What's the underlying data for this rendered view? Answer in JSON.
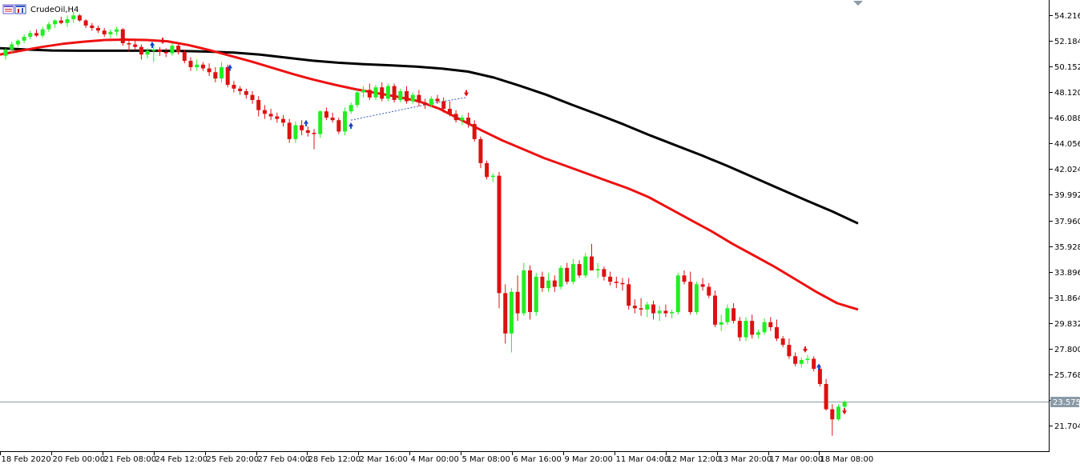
{
  "window": {
    "title": "CrudeOil,H4"
  },
  "chart_data": {
    "type": "candlestick",
    "symbol": "CrudeOil",
    "timeframe": "H4",
    "ylim": [
      20.45,
      55.2
    ],
    "y_ticks": [
      "54.216",
      "52.184",
      "50.152",
      "48.120",
      "46.088",
      "44.056",
      "42.024",
      "39.992",
      "37.960",
      "35.928",
      "33.896",
      "31.864",
      "29.832",
      "27.800",
      "25.768",
      "23.736",
      "21.704"
    ],
    "x_ticks": [
      "18 Feb 2020",
      "20 Feb 00:00",
      "21 Feb 08:00",
      "24 Feb 12:00",
      "25 Feb 20:00",
      "27 Feb 04:00",
      "28 Feb 12:00",
      "2 Mar 16:00",
      "4 Mar 00:00",
      "5 Mar 08:00",
      "6 Mar 16:00",
      "9 Mar 20:00",
      "11 Mar 04:00",
      "12 Mar 12:00",
      "13 Mar 20:00",
      "17 Mar 00:00",
      "18 Mar 08:00"
    ],
    "current_price": "23.575",
    "current_price_value": 23.575,
    "colors": {
      "bull": "#22ee22",
      "bear": "#dd1111",
      "ma_fast": "#ee1111",
      "ma_slow": "#000000",
      "signal_up": "#1144cc",
      "signal_down": "#dd1111",
      "price_line": "#8a9aa6",
      "axis": "#000000"
    },
    "candles": [
      [
        51.0,
        51.6,
        50.7,
        51.5
      ],
      [
        51.5,
        52.1,
        51.2,
        51.9
      ],
      [
        51.9,
        52.3,
        51.7,
        52.2
      ],
      [
        52.2,
        52.7,
        52.0,
        52.5
      ],
      [
        52.5,
        53.0,
        52.3,
        52.8
      ],
      [
        52.8,
        53.1,
        52.5,
        52.6
      ],
      [
        52.6,
        53.3,
        52.4,
        53.1
      ],
      [
        53.1,
        53.7,
        52.9,
        53.5
      ],
      [
        53.5,
        53.9,
        53.2,
        53.8
      ],
      [
        53.8,
        54.1,
        53.5,
        53.6
      ],
      [
        53.6,
        54.2,
        53.3,
        53.9
      ],
      [
        53.9,
        54.5,
        53.6,
        54.2
      ],
      [
        54.2,
        54.3,
        53.7,
        53.8
      ],
      [
        53.8,
        53.9,
        53.2,
        53.4
      ],
      [
        53.4,
        53.6,
        53.0,
        53.2
      ],
      [
        53.2,
        53.4,
        52.8,
        53.0
      ],
      [
        53.0,
        53.2,
        52.5,
        52.7
      ],
      [
        52.7,
        53.1,
        52.4,
        52.9
      ],
      [
        52.9,
        53.3,
        52.6,
        53.1
      ],
      [
        53.1,
        53.2,
        51.8,
        52.0
      ],
      [
        52.0,
        52.2,
        51.3,
        51.9
      ],
      [
        51.9,
        52.2,
        51.5,
        51.7
      ],
      [
        51.7,
        51.9,
        50.7,
        51.1
      ],
      [
        51.1,
        51.6,
        50.8,
        51.4
      ],
      [
        51.4,
        51.8,
        50.5,
        51.5
      ],
      [
        51.5,
        51.7,
        51.0,
        51.3
      ],
      [
        51.3,
        51.6,
        50.9,
        51.2
      ],
      [
        51.2,
        52.0,
        51.0,
        51.8
      ],
      [
        51.8,
        52.0,
        51.1,
        51.3
      ],
      [
        51.3,
        51.5,
        50.4,
        50.6
      ],
      [
        50.6,
        50.9,
        49.8,
        50.1
      ],
      [
        50.1,
        50.7,
        49.8,
        50.3
      ],
      [
        50.3,
        50.5,
        49.8,
        50.0
      ],
      [
        50.0,
        50.4,
        49.4,
        49.7
      ],
      [
        49.7,
        50.1,
        48.9,
        49.2
      ],
      [
        49.2,
        50.5,
        48.9,
        50.1
      ],
      [
        50.1,
        50.3,
        48.5,
        48.7
      ],
      [
        48.7,
        49.0,
        48.1,
        48.4
      ],
      [
        48.4,
        48.6,
        47.9,
        48.2
      ],
      [
        48.2,
        48.4,
        47.6,
        47.9
      ],
      [
        47.9,
        48.2,
        47.2,
        47.5
      ],
      [
        47.5,
        47.8,
        46.2,
        46.7
      ],
      [
        46.7,
        47.1,
        46.0,
        46.4
      ],
      [
        46.4,
        46.8,
        45.9,
        46.2
      ],
      [
        46.2,
        46.5,
        45.7,
        46.0
      ],
      [
        46.0,
        46.3,
        45.4,
        45.7
      ],
      [
        45.7,
        46.0,
        44.1,
        44.4
      ],
      [
        44.4,
        45.8,
        44.1,
        45.5
      ],
      [
        45.5,
        45.9,
        44.7,
        45.1
      ],
      [
        45.1,
        45.4,
        44.6,
        44.9
      ],
      [
        44.9,
        45.2,
        43.6,
        44.8
      ],
      [
        44.8,
        46.7,
        44.5,
        46.6
      ],
      [
        46.6,
        46.9,
        45.9,
        46.1
      ],
      [
        46.1,
        46.5,
        45.7,
        45.9
      ],
      [
        45.9,
        46.1,
        44.8,
        45.0
      ],
      [
        45.0,
        46.9,
        44.7,
        46.6
      ],
      [
        46.6,
        47.3,
        46.4,
        47.1
      ],
      [
        47.1,
        48.3,
        46.9,
        48.1
      ],
      [
        48.1,
        48.6,
        47.7,
        48.3
      ],
      [
        48.3,
        48.8,
        47.5,
        47.7
      ],
      [
        47.7,
        48.7,
        47.5,
        48.5
      ],
      [
        48.5,
        48.9,
        47.4,
        47.6
      ],
      [
        47.6,
        48.8,
        47.4,
        48.6
      ],
      [
        48.6,
        48.8,
        47.3,
        47.5
      ],
      [
        47.5,
        48.4,
        47.3,
        48.2
      ],
      [
        48.2,
        48.6,
        47.2,
        47.4
      ],
      [
        47.4,
        48.1,
        47.2,
        47.9
      ],
      [
        47.9,
        48.3,
        47.0,
        47.3
      ],
      [
        47.3,
        47.6,
        46.8,
        47.1
      ],
      [
        47.1,
        47.8,
        46.9,
        47.6
      ],
      [
        47.6,
        47.9,
        47.2,
        47.4
      ],
      [
        47.4,
        47.7,
        46.5,
        46.8
      ],
      [
        46.8,
        47.4,
        46.2,
        46.4
      ],
      [
        46.4,
        46.7,
        45.7,
        45.9
      ],
      [
        45.9,
        46.3,
        45.5,
        46.1
      ],
      [
        46.1,
        46.5,
        45.3,
        45.6
      ],
      [
        45.6,
        45.9,
        44.2,
        44.4
      ],
      [
        44.4,
        44.6,
        42.1,
        42.5
      ],
      [
        42.5,
        42.7,
        41.2,
        41.4
      ],
      [
        41.4,
        41.7,
        41.0,
        41.5
      ],
      [
        41.5,
        41.8,
        31.0,
        32.2
      ],
      [
        32.2,
        32.9,
        28.2,
        29.0
      ],
      [
        29.0,
        32.6,
        27.5,
        32.3
      ],
      [
        32.3,
        33.6,
        30.0,
        30.6
      ],
      [
        30.6,
        34.6,
        30.4,
        34.0
      ],
      [
        34.0,
        34.4,
        30.1,
        30.7
      ],
      [
        30.7,
        33.8,
        30.4,
        33.5
      ],
      [
        33.5,
        33.9,
        32.3,
        32.6
      ],
      [
        32.6,
        33.8,
        32.3,
        33.2
      ],
      [
        33.2,
        33.6,
        32.3,
        32.7
      ],
      [
        32.7,
        34.4,
        32.5,
        34.2
      ],
      [
        34.2,
        34.6,
        32.9,
        33.1
      ],
      [
        33.1,
        34.9,
        32.9,
        34.5
      ],
      [
        34.5,
        34.8,
        33.4,
        33.6
      ],
      [
        33.6,
        35.4,
        33.4,
        35.1
      ],
      [
        35.1,
        36.1,
        34.3,
        34.0
      ],
      [
        34.0,
        34.6,
        33.4,
        34.1
      ],
      [
        34.1,
        34.3,
        33.2,
        33.5
      ],
      [
        33.5,
        33.9,
        32.8,
        33.1
      ],
      [
        33.1,
        33.5,
        32.6,
        33.0
      ],
      [
        33.0,
        33.4,
        32.4,
        32.9
      ],
      [
        32.9,
        33.4,
        30.9,
        31.2
      ],
      [
        31.2,
        31.7,
        30.6,
        31.0
      ],
      [
        31.0,
        31.8,
        30.4,
        30.9
      ],
      [
        30.9,
        31.5,
        30.3,
        31.3
      ],
      [
        31.3,
        31.6,
        30.1,
        30.6
      ],
      [
        30.6,
        31.2,
        30.0,
        30.8
      ],
      [
        30.8,
        31.3,
        30.3,
        30.6
      ],
      [
        30.6,
        30.9,
        30.2,
        30.7
      ],
      [
        30.7,
        33.8,
        30.5,
        33.6
      ],
      [
        33.6,
        34.0,
        32.9,
        33.1
      ],
      [
        33.1,
        33.9,
        30.5,
        30.7
      ],
      [
        30.7,
        33.1,
        30.5,
        32.9
      ],
      [
        32.9,
        33.4,
        32.4,
        32.7
      ],
      [
        32.7,
        33.0,
        31.8,
        32.0
      ],
      [
        32.0,
        32.4,
        29.5,
        29.7
      ],
      [
        29.7,
        30.5,
        29.2,
        29.9
      ],
      [
        29.9,
        31.3,
        29.7,
        31.0
      ],
      [
        31.0,
        31.4,
        29.8,
        30.0
      ],
      [
        30.0,
        30.3,
        28.4,
        28.7
      ],
      [
        28.7,
        30.3,
        28.4,
        30.0
      ],
      [
        30.0,
        30.5,
        28.6,
        28.9
      ],
      [
        28.9,
        29.3,
        28.6,
        29.1
      ],
      [
        29.1,
        30.2,
        28.9,
        29.9
      ],
      [
        29.9,
        30.3,
        29.2,
        29.5
      ],
      [
        29.5,
        30.1,
        28.4,
        28.6
      ],
      [
        28.6,
        28.8,
        27.9,
        28.1
      ],
      [
        28.1,
        28.6,
        27.0,
        27.2
      ],
      [
        27.2,
        27.5,
        26.4,
        26.6
      ],
      [
        26.6,
        27.1,
        26.3,
        26.9
      ],
      [
        26.9,
        27.3,
        26.6,
        27.0
      ],
      [
        27.0,
        27.2,
        26.0,
        26.2
      ],
      [
        26.2,
        26.5,
        24.8,
        25.0
      ],
      [
        25.0,
        25.4,
        22.9,
        23.0
      ],
      [
        23.0,
        23.4,
        20.9,
        22.2
      ],
      [
        22.2,
        23.4,
        22.1,
        23.2
      ],
      [
        23.2,
        23.7,
        23.1,
        23.57
      ]
    ],
    "ma_fast": [
      51.1,
      51.4,
      51.7,
      51.95,
      52.12,
      52.25,
      52.28,
      52.25,
      52.15,
      51.85,
      51.45,
      51.0,
      50.55,
      50.05,
      49.55,
      49.1,
      48.7,
      48.35,
      48.05,
      47.75,
      47.4,
      46.8,
      45.95,
      45.1,
      44.3,
      43.6,
      42.9,
      42.3,
      41.7,
      41.1,
      40.5,
      39.8,
      38.9,
      38.0,
      37.1,
      36.1,
      35.2,
      34.3,
      33.3,
      32.3,
      31.4,
      30.9
    ],
    "ma_slow": [
      51.6,
      51.5,
      51.42,
      51.4,
      51.4,
      51.4,
      51.4,
      51.38,
      51.33,
      51.25,
      51.1,
      50.86,
      50.62,
      50.45,
      50.33,
      50.25,
      50.14,
      49.98,
      49.75,
      49.27,
      48.62,
      47.92,
      47.12,
      46.35,
      45.55,
      44.7,
      43.9,
      43.1,
      42.25,
      41.35,
      40.45,
      39.55,
      38.68,
      37.72
    ],
    "signals_up": [
      [
        190,
        52.0
      ],
      [
        287,
        50.2
      ],
      [
        382,
        45.8
      ],
      [
        438,
        45.6
      ],
      [
        1022,
        26.5
      ]
    ],
    "signals_down": [
      [
        203,
        52.05
      ],
      [
        582,
        47.9
      ],
      [
        1005,
        27.6
      ],
      [
        1054,
        22.7
      ]
    ],
    "dashed_line": [
      [
        438,
        45.9
      ],
      [
        545,
        47.3
      ],
      [
        582,
        47.7
      ]
    ]
  }
}
